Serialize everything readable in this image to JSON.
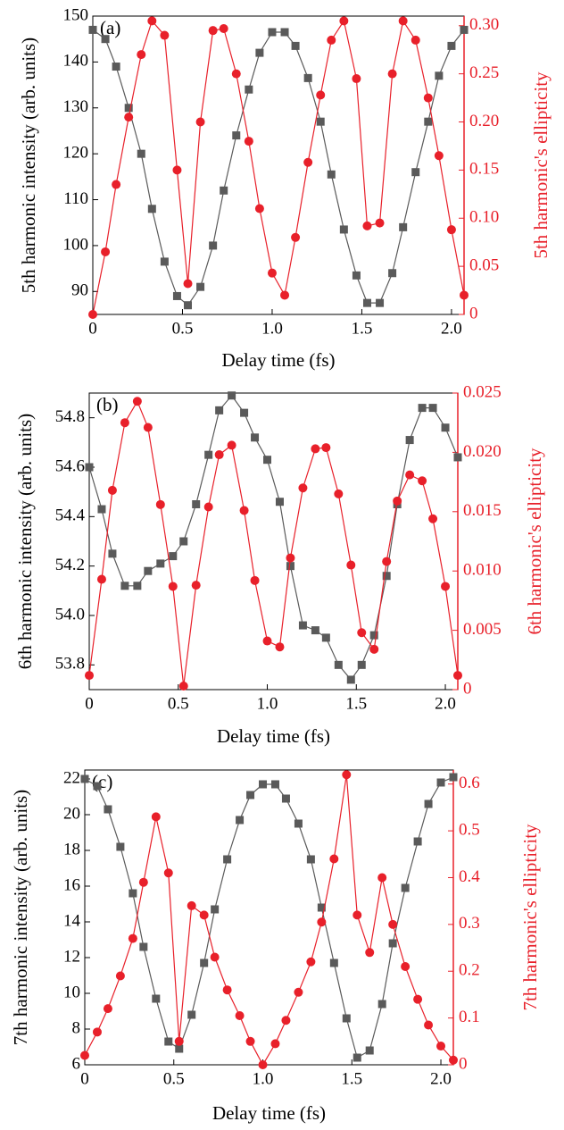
{
  "chart_data": [
    {
      "type": "line",
      "annotation": "(a)",
      "xlabel": "Delay time (fs)",
      "ylabel": "5th harmonic intensity (arb. units)",
      "y2label": "5th harmonic's ellipticity",
      "x": [
        0,
        0.07,
        0.13,
        0.2,
        0.27,
        0.33,
        0.4,
        0.47,
        0.53,
        0.6,
        0.67,
        0.73,
        0.8,
        0.87,
        0.93,
        1.0,
        1.07,
        1.13,
        1.2,
        1.27,
        1.33,
        1.4,
        1.47,
        1.53,
        1.6,
        1.67,
        1.73,
        1.8,
        1.87,
        1.93,
        2.0,
        2.07
      ],
      "xlim": [
        0,
        2.07
      ],
      "xticks": [
        0,
        0.5,
        {
          "value": 1,
          "label": "1.0"
        },
        1.5,
        {
          "value": 2,
          "label": "2.0"
        }
      ],
      "ylim": [
        85,
        150
      ],
      "yticks": [
        90,
        100,
        110,
        120,
        130,
        140,
        150
      ],
      "y2lim": [
        0,
        0.31
      ],
      "y2ticks": [
        0,
        0.05,
        {
          "value": 0.1,
          "label": "0.10"
        },
        0.15,
        {
          "value": 0.2,
          "label": "0.20"
        },
        0.25,
        {
          "value": 0.3,
          "label": "0.30"
        }
      ],
      "series": [
        {
          "color": "#5a5a5a",
          "marker": "square",
          "values": [
            147,
            145,
            139,
            130,
            120,
            108,
            96.5,
            89,
            87,
            91,
            100,
            112,
            124,
            134,
            142,
            146.5,
            146.5,
            143.5,
            136.5,
            127,
            115.5,
            103.5,
            93.5,
            87.5,
            87.5,
            94,
            104,
            116,
            127,
            137,
            143.5,
            147
          ]
        },
        {
          "color": "#e8202a",
          "marker": "circle",
          "axis": "y2",
          "values": [
            0,
            0.065,
            0.135,
            0.205,
            0.27,
            0.305,
            0.29,
            0.15,
            0.032,
            0.2,
            0.295,
            0.297,
            0.25,
            0.18,
            0.11,
            0.043,
            0.02,
            0.08,
            0.158,
            0.228,
            0.285,
            0.305,
            0.245,
            0.092,
            0.095,
            0.25,
            0.305,
            0.285,
            0.225,
            0.165,
            0.088,
            0.02
          ]
        }
      ]
    },
    {
      "type": "line",
      "annotation": "(b)",
      "xlabel": "Delay time (fs)",
      "ylabel": "6th harmonic intensity (arb. units)",
      "y2label": "6th harmonic's ellipticity",
      "x": [
        0,
        0.07,
        0.13,
        0.2,
        0.27,
        0.33,
        0.4,
        0.47,
        0.53,
        0.6,
        0.67,
        0.73,
        0.8,
        0.87,
        0.93,
        1.0,
        1.07,
        1.13,
        1.2,
        1.27,
        1.33,
        1.4,
        1.47,
        1.53,
        1.6,
        1.67,
        1.73,
        1.8,
        1.87,
        1.93,
        2.0,
        2.07
      ],
      "xlim": [
        0,
        2.07
      ],
      "xticks": [
        0,
        0.5,
        {
          "value": 1,
          "label": "1.0"
        },
        1.5,
        {
          "value": 2,
          "label": "2.0"
        }
      ],
      "ylim": [
        53.7,
        54.9
      ],
      "yticks": [
        53.8,
        {
          "value": 54,
          "label": "54.0"
        },
        54.2,
        54.4,
        54.6,
        54.8
      ],
      "y2lim": [
        0,
        0.025
      ],
      "y2ticks": [
        0,
        0.005,
        {
          "value": 0.01,
          "label": "0.010"
        },
        0.015,
        {
          "value": 0.02,
          "label": "0.020"
        },
        0.025
      ],
      "series": [
        {
          "color": "#5a5a5a",
          "marker": "square",
          "values": [
            54.6,
            54.43,
            54.25,
            54.12,
            54.12,
            54.18,
            54.21,
            54.24,
            54.3,
            54.45,
            54.65,
            54.83,
            54.89,
            54.82,
            54.72,
            54.63,
            54.46,
            54.2,
            53.96,
            53.94,
            53.91,
            53.8,
            53.74,
            53.8,
            53.92,
            54.16,
            54.45,
            54.71,
            54.84,
            54.84,
            54.76,
            54.64
          ]
        },
        {
          "color": "#e8202a",
          "marker": "circle",
          "axis": "y2",
          "values": [
            0.0012,
            0.0093,
            0.0168,
            0.0225,
            0.0243,
            0.0221,
            0.0156,
            0.0087,
            0.0003,
            0.0088,
            0.0154,
            0.0198,
            0.0206,
            0.0151,
            0.0092,
            0.0041,
            0.0036,
            0.0111,
            0.017,
            0.0203,
            0.0204,
            0.0165,
            0.0105,
            0.0048,
            0.0034,
            0.0108,
            0.0159,
            0.0181,
            0.0176,
            0.0144,
            0.0087,
            0.0012
          ]
        }
      ]
    },
    {
      "type": "line",
      "annotation": "(c)",
      "xlabel": "Delay time (fs)",
      "ylabel": "7th harmonic intensity (arb. units)",
      "y2label": "7th harmonic's ellipticity",
      "x": [
        0,
        0.07,
        0.13,
        0.2,
        0.27,
        0.33,
        0.4,
        0.47,
        0.53,
        0.6,
        0.67,
        0.73,
        0.8,
        0.87,
        0.93,
        1.0,
        1.07,
        1.13,
        1.2,
        1.27,
        1.33,
        1.4,
        1.47,
        1.53,
        1.6,
        1.67,
        1.73,
        1.8,
        1.87,
        1.93,
        2.0,
        2.07
      ],
      "xlim": [
        0,
        2.07
      ],
      "xticks": [
        0,
        0.5,
        {
          "value": 1,
          "label": "1.0"
        },
        1.5,
        {
          "value": 2,
          "label": "2.0"
        }
      ],
      "ylim": [
        6,
        22.5
      ],
      "yticks": [
        6,
        8,
        10,
        12,
        14,
        16,
        18,
        20,
        22
      ],
      "y2lim": [
        0,
        0.63
      ],
      "y2ticks": [
        0,
        0.1,
        0.2,
        0.3,
        0.4,
        0.5,
        0.6
      ],
      "series": [
        {
          "color": "#5a5a5a",
          "marker": "square",
          "values": [
            22,
            21.6,
            20.3,
            18.2,
            15.6,
            12.6,
            9.7,
            7.3,
            6.9,
            8.8,
            11.7,
            14.7,
            17.5,
            19.7,
            21.1,
            21.7,
            21.7,
            20.9,
            19.5,
            17.5,
            14.8,
            11.7,
            8.6,
            6.4,
            6.8,
            9.4,
            12.8,
            15.9,
            18.5,
            20.6,
            21.8,
            22.1
          ]
        },
        {
          "color": "#e8202a",
          "marker": "circle",
          "axis": "y2",
          "values": [
            0.02,
            0.07,
            0.12,
            0.19,
            0.27,
            0.39,
            0.53,
            0.41,
            0.05,
            0.34,
            0.32,
            0.23,
            0.16,
            0.105,
            0.05,
            0,
            0.045,
            0.095,
            0.155,
            0.22,
            0.305,
            0.44,
            0.62,
            0.32,
            0.24,
            0.4,
            0.3,
            0.21,
            0.14,
            0.085,
            0.04,
            0.01
          ]
        }
      ]
    }
  ]
}
